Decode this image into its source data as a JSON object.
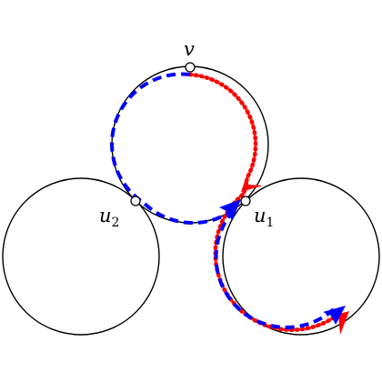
{
  "labels": {
    "v": "v",
    "u2_main": "u",
    "u2_sub": "2",
    "u1_main": "u",
    "u1_sub": "1"
  },
  "colors": {
    "outline": "#000000",
    "dashed_path": "#0000ff",
    "dotted_path": "#ff0000",
    "background": "#ffffff"
  }
}
